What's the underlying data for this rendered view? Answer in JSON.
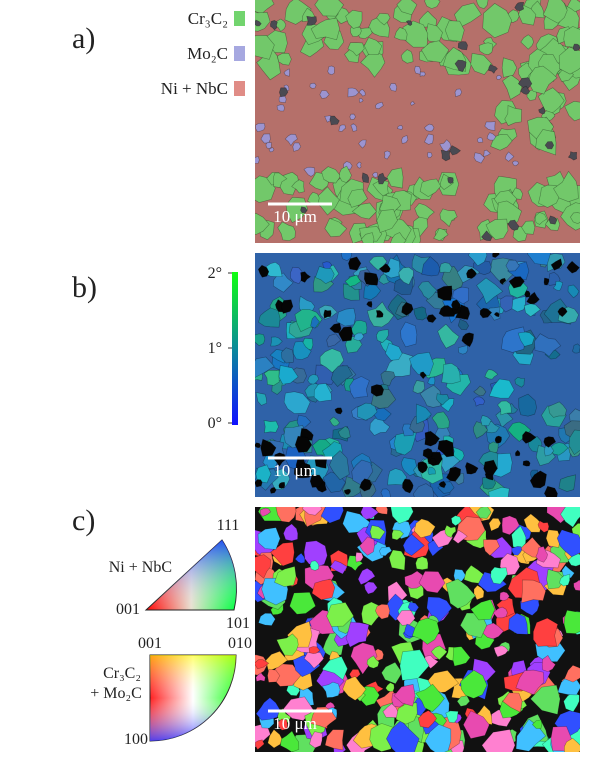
{
  "panels": [
    {
      "label": "a)",
      "legend": [
        {
          "label": "Cr₃C₂",
          "color": "#72d46e"
        },
        {
          "label": "Mo₂C",
          "color": "#a6a8e0"
        },
        {
          "label": "Ni + NbC",
          "color": "#e08c86"
        }
      ],
      "scale_bar": "10 μm"
    },
    {
      "label": "b)",
      "colorbar": {
        "ticks": [
          {
            "value": 2,
            "label": "2°"
          },
          {
            "value": 1,
            "label": "1°"
          },
          {
            "value": 0,
            "label": "0°"
          }
        ]
      },
      "scale_bar": "10 μm"
    },
    {
      "label": "c)",
      "ipf": {
        "ni_nbc": {
          "title": "Ni + NbC",
          "corner_111": "111",
          "corner_001": "001",
          "corner_101": "101"
        },
        "carbides": {
          "title": [
            "Cr₃C₂",
            "+ Mo₂C"
          ],
          "corner_001": "001",
          "corner_010": "010",
          "corner_100": "100"
        }
      },
      "scale_bar": "10 μm"
    }
  ]
}
